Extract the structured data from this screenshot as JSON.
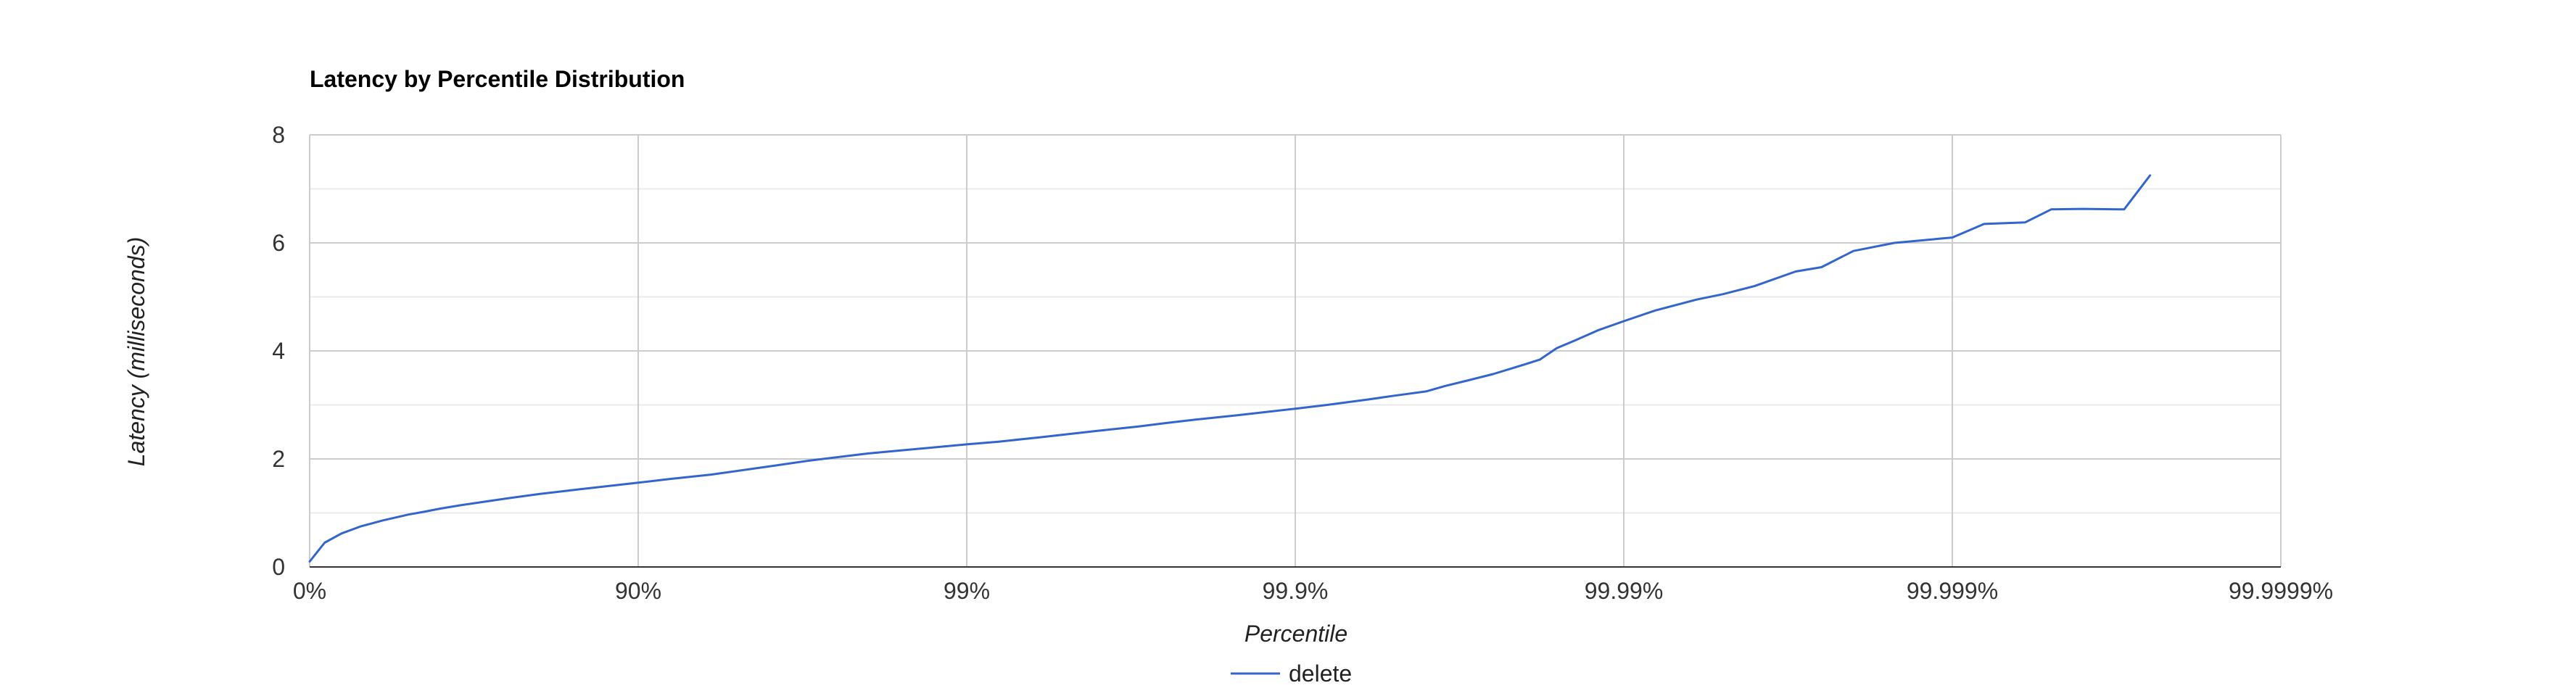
{
  "chart_data": {
    "type": "line",
    "title": "Latency by Percentile Distribution",
    "xlabel": "Percentile",
    "ylabel": "Latency (milliseconds)",
    "x_scale": "log-inverse-percentile",
    "x_ticks": [
      "0%",
      "90%",
      "99%",
      "99.9%",
      "99.99%",
      "99.999%",
      "99.9999%"
    ],
    "ylim": [
      0,
      8
    ],
    "y_ticks": [
      "0",
      "2",
      "4",
      "6",
      "8"
    ],
    "grid": true,
    "legend_position": "bottom",
    "series": [
      {
        "name": "delete",
        "color": "#3366cc",
        "x": [
          0,
          10,
          20,
          30,
          40,
          50,
          55,
          60,
          65,
          70,
          75,
          80,
          85,
          90,
          92,
          94,
          96,
          97,
          98,
          98.5,
          99,
          99.2,
          99.4,
          99.6,
          99.7,
          99.75,
          99.8,
          99.85,
          99.9,
          99.92,
          99.94,
          99.95,
          99.96,
          99.965,
          99.97,
          99.975,
          99.98,
          99.982,
          99.984,
          99.986,
          99.988,
          99.99,
          99.992,
          99.994,
          99.995,
          99.996,
          99.997,
          99.9975,
          99.998,
          99.9985,
          99.999,
          99.9992,
          99.9994,
          99.9995,
          99.9996,
          99.9997,
          99.99975
        ],
        "y": [
          0.1,
          0.45,
          0.62,
          0.75,
          0.86,
          0.97,
          1.02,
          1.08,
          1.14,
          1.2,
          1.27,
          1.35,
          1.44,
          1.56,
          1.63,
          1.71,
          1.86,
          1.97,
          2.1,
          2.17,
          2.27,
          2.32,
          2.4,
          2.52,
          2.6,
          2.66,
          2.73,
          2.81,
          2.93,
          3.0,
          3.1,
          3.17,
          3.25,
          3.35,
          3.45,
          3.57,
          3.75,
          3.84,
          4.05,
          4.2,
          4.38,
          4.55,
          4.75,
          4.95,
          5.05,
          5.2,
          5.47,
          5.55,
          5.85,
          6.0,
          6.1,
          6.35,
          6.38,
          6.62,
          6.63,
          6.62,
          7.25
        ]
      }
    ]
  }
}
